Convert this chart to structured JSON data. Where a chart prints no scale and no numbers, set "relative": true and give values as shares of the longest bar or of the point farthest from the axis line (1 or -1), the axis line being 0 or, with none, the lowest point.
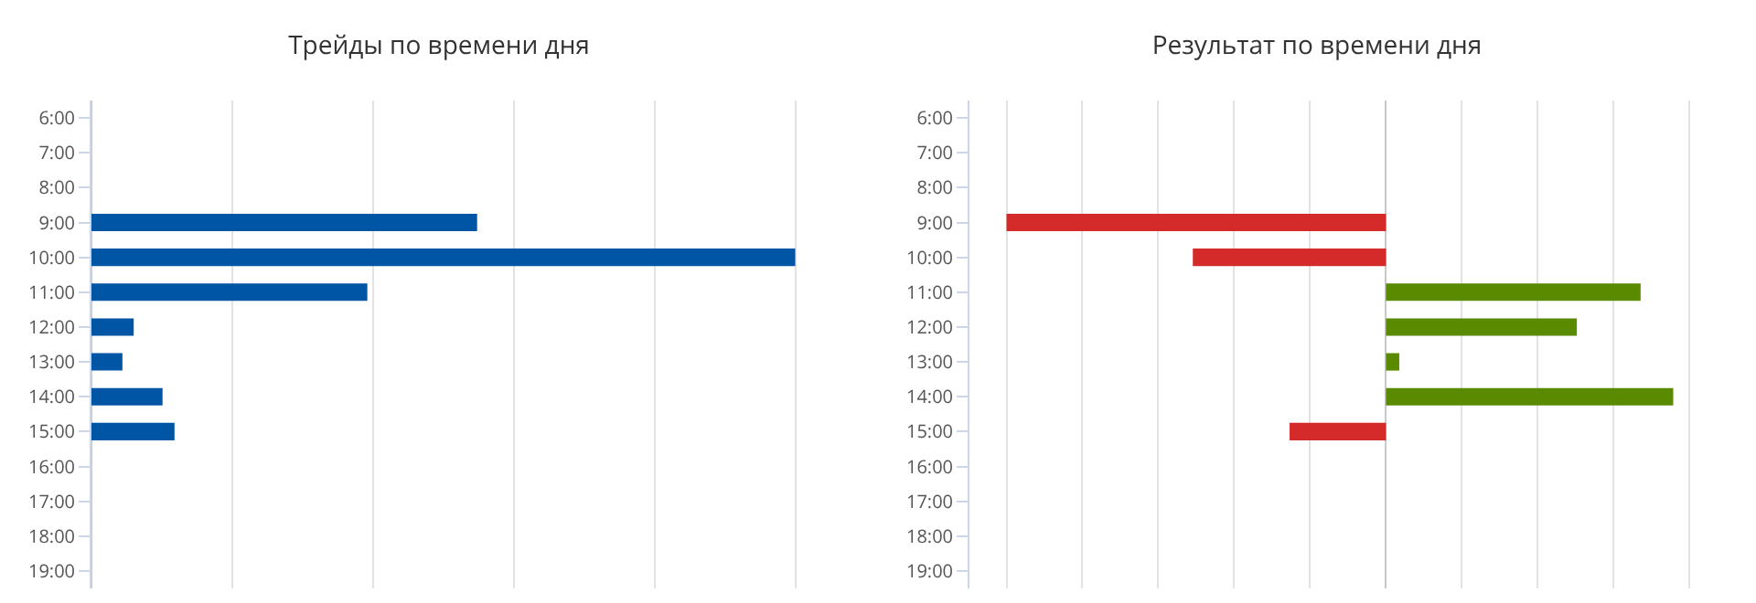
{
  "chart_data": [
    {
      "type": "bar",
      "title": "Трейды по времени дня",
      "orientation": "horizontal",
      "relative": true,
      "grid": "x",
      "legend": false,
      "color": "#0055a5",
      "categories": [
        "6:00",
        "7:00",
        "8:00",
        "9:00",
        "10:00",
        "11:00",
        "12:00",
        "13:00",
        "14:00",
        "15:00",
        "16:00",
        "17:00",
        "18:00",
        "19:00"
      ],
      "values": [
        null,
        null,
        null,
        0.548,
        1,
        0.392,
        0.06,
        0.044,
        0.101,
        0.118,
        null,
        null,
        null,
        null
      ]
    },
    {
      "type": "bar",
      "title": "Результат по времени дня",
      "orientation": "horizontal",
      "relative": true,
      "grid": "x",
      "legend": false,
      "categories": [
        "6:00",
        "7:00",
        "8:00",
        "9:00",
        "10:00",
        "11:00",
        "12:00",
        "13:00",
        "14:00",
        "15:00",
        "16:00",
        "17:00",
        "18:00",
        "19:00"
      ],
      "values": [
        null,
        null,
        null,
        -1,
        -0.509,
        0.671,
        0.503,
        0.035,
        0.757,
        -0.254,
        null,
        null,
        null,
        null
      ],
      "colors": [
        null,
        null,
        null,
        "#d42a2a",
        "#d42a2a",
        "#5a8a00",
        "#5a8a00",
        "#5a8a00",
        "#5a8a00",
        "#d42a2a",
        null,
        null,
        null,
        null
      ]
    }
  ]
}
